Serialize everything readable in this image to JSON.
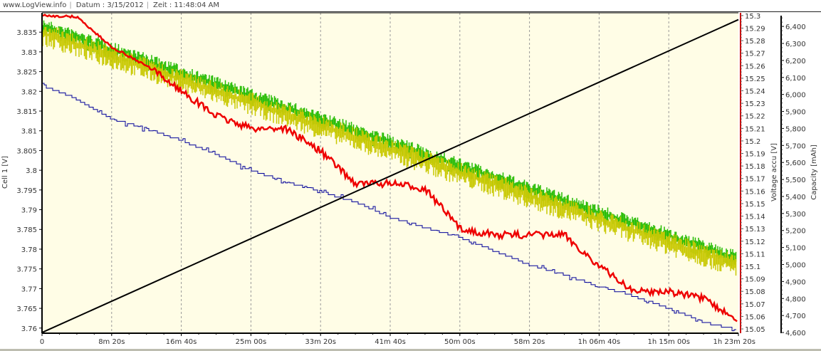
{
  "header": {
    "site": "www.LogView.info",
    "date_label": "Datum : 3/15/2012",
    "time_label": "Zeit : 11:48:04 AM"
  },
  "chart_data": {
    "type": "line",
    "background": "#fffde6",
    "grid": "vertical dashed",
    "x": {
      "unit": "s",
      "range": [
        0,
        5000
      ],
      "ticks": [
        0,
        500,
        1000,
        1500,
        2000,
        2500,
        3000,
        3500,
        4000,
        4500,
        5000
      ],
      "tick_labels": [
        "0",
        "8m 20s",
        "16m 40s",
        "25m 00s",
        "33m 20s",
        "41m 40s",
        "50m 00s",
        "58m 20s",
        "1h 06m 40s",
        "1h 15m 00s",
        "1h 23m 20s"
      ]
    },
    "axes": {
      "left": {
        "label": "Cell 1 [V]",
        "range": [
          3.7587,
          3.8399
        ],
        "ticks": [
          3.76,
          3.765,
          3.77,
          3.775,
          3.78,
          3.785,
          3.79,
          3.795,
          3.8,
          3.805,
          3.81,
          3.815,
          3.82,
          3.825,
          3.83,
          3.835
        ],
        "tick_labels": [
          "3.76",
          "3.765",
          "3.77",
          "3.775",
          "3.78",
          "3.785",
          "3.79",
          "3.795",
          "3.8",
          "3.805",
          "3.81",
          "3.815",
          "3.82",
          "3.825",
          "3.83",
          "3.835"
        ]
      },
      "right1": {
        "label": "Voltage accu [V]",
        "color": "#cc0000",
        "range": [
          15.0466,
          15.3022
        ],
        "ticks": [
          15.05,
          15.06,
          15.07,
          15.08,
          15.09,
          15.1,
          15.11,
          15.12,
          15.13,
          15.14,
          15.15,
          15.16,
          15.17,
          15.18,
          15.19,
          15.2,
          15.21,
          15.22,
          15.23,
          15.24,
          15.25,
          15.26,
          15.27,
          15.28,
          15.29,
          15.3
        ],
        "tick_labels": [
          "15.05",
          "15.06",
          "15.07",
          "15.08",
          "15.09",
          "15.1",
          "15.11",
          "15.12",
          "15.13",
          "15.14",
          "15.15",
          "15.16",
          "15.17",
          "15.18",
          "15.19",
          "15.2",
          "15.21",
          "15.22",
          "15.23",
          "15.24",
          "15.25",
          "15.26",
          "15.27",
          "15.28",
          "15.29",
          "15.3"
        ]
      },
      "right2": {
        "label": "Capacity [mAh]",
        "color": "#000000",
        "range": [
          4596,
          6480
        ],
        "ticks": [
          4600,
          4700,
          4800,
          4900,
          5000,
          5100,
          5200,
          5300,
          5400,
          5500,
          5600,
          5700,
          5800,
          5900,
          6000,
          6100,
          6200,
          6300,
          6400
        ],
        "tick_labels": [
          "4,600",
          "4,700",
          "4,800",
          "4,900",
          "5,000",
          "5,100",
          "5,200",
          "5,300",
          "5,400",
          "5,500",
          "5,600",
          "5,700",
          "5,800",
          "5,900",
          "6,000",
          "6,100",
          "6,200",
          "6,300",
          "6,400"
        ]
      }
    },
    "sample_times": [
      0,
      250,
      500,
      750,
      1000,
      1250,
      1500,
      1750,
      2000,
      2250,
      2500,
      2750,
      3000,
      3250,
      3500,
      3750,
      4000,
      4250,
      4500,
      4750,
      5000
    ],
    "series": [
      {
        "axis": "left",
        "color": "#22bb00",
        "style": "band",
        "high": [
          3.8385,
          3.8356,
          3.8326,
          3.8297,
          3.8267,
          3.8238,
          3.8208,
          3.8179,
          3.8149,
          3.812,
          3.809,
          3.8061,
          3.8031,
          3.8002,
          3.7972,
          3.7943,
          3.7913,
          3.7884,
          3.7854,
          3.7825,
          3.7795
        ],
        "low": [
          3.834,
          3.8311,
          3.8281,
          3.8252,
          3.8222,
          3.8193,
          3.8163,
          3.8134,
          3.8104,
          3.8075,
          3.8045,
          3.8016,
          3.7986,
          3.7957,
          3.7927,
          3.7898,
          3.7868,
          3.7839,
          3.7809,
          3.778,
          3.775
        ]
      },
      {
        "axis": "left",
        "color": "#c8c800",
        "style": "band",
        "high": [
          3.8375,
          3.8346,
          3.8316,
          3.8287,
          3.8257,
          3.8228,
          3.8198,
          3.8169,
          3.8139,
          3.811,
          3.808,
          3.8051,
          3.8021,
          3.7992,
          3.7962,
          3.7933,
          3.7903,
          3.7874,
          3.7844,
          3.7815,
          3.7785
        ],
        "low": [
          3.8315,
          3.8286,
          3.8256,
          3.8227,
          3.8197,
          3.8168,
          3.8138,
          3.8109,
          3.8079,
          3.805,
          3.802,
          3.7991,
          3.7961,
          3.7932,
          3.7902,
          3.7873,
          3.7843,
          3.7814,
          3.7784,
          3.7755,
          3.7725
        ]
      },
      {
        "axis": "right1",
        "color": "#ee0000",
        "style": "line",
        "values": [
          15.3,
          15.299,
          15.275,
          15.26,
          15.24,
          15.22,
          15.21,
          15.21,
          15.192,
          15.166,
          15.166,
          15.162,
          15.13,
          15.125,
          15.125,
          15.125,
          15.1,
          15.08,
          15.08,
          15.074,
          15.056
        ]
      },
      {
        "axis": "left",
        "color": "#000099",
        "style": "step",
        "values": [
          3.8215,
          3.818,
          3.813,
          3.8105,
          3.8075,
          3.804,
          3.8,
          3.797,
          3.7945,
          3.792,
          3.788,
          3.7855,
          3.783,
          3.7795,
          3.776,
          3.7735,
          3.7705,
          3.768,
          3.765,
          3.7615,
          3.7595
        ]
      },
      {
        "axis": "right2",
        "color": "#000000",
        "style": "line",
        "x": [
          0,
          5000
        ],
        "values": [
          4600,
          6440
        ]
      }
    ]
  }
}
